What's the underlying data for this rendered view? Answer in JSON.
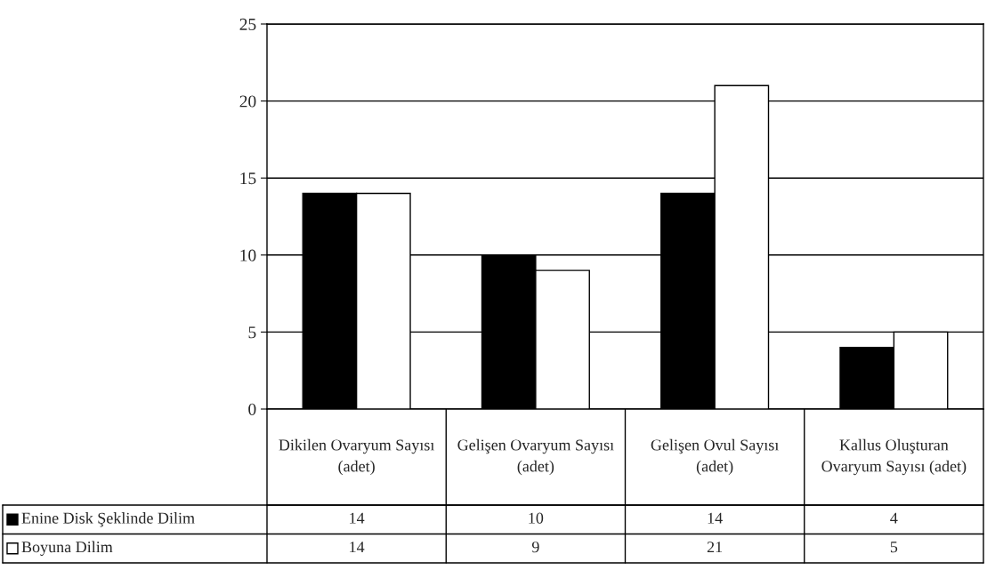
{
  "chart_data": {
    "type": "bar",
    "categories": [
      "Dikilen Ovaryum Sayısı (adet)",
      "Gelişen Ovaryum Sayısı (adet)",
      "Gelişen Ovul Sayısı (adet)",
      "Kallus Oluşturan Ovaryum Sayısı (adet)"
    ],
    "series": [
      {
        "name": "Enine Disk Şeklinde Dilim",
        "color": "#000000",
        "values": [
          14,
          10,
          14,
          4
        ]
      },
      {
        "name": "Boyuna Dilim",
        "color": "#ffffff",
        "values": [
          14,
          9,
          21,
          5
        ]
      }
    ],
    "ylim": [
      0,
      25
    ],
    "yticks": [
      0,
      5,
      10,
      15,
      20,
      25
    ],
    "grid": "y",
    "legend": "bottom",
    "data_labels": true
  }
}
